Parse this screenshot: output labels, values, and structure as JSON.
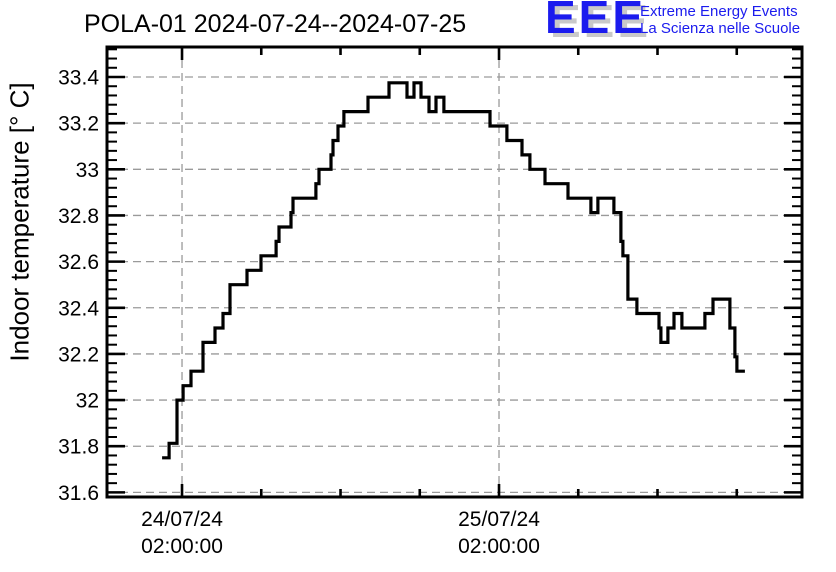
{
  "logo": {
    "acronym": "EEE",
    "line1": "Extreme Energy Events",
    "line2": "La Scienza nelle Scuole",
    "color": "#1b1bee",
    "shadow_color": "#c9c9c9"
  },
  "chart_data": {
    "type": "line",
    "subtype": "step-post",
    "title": "POLA-01 2024-07-24--2024-07-25",
    "ylabel": "Indoor temperature [° C]",
    "xlabel": "",
    "series_name": "Indoor temperature",
    "line_color": "#000000",
    "background_color": "#ffffff",
    "grid": {
      "show": true,
      "color": "#9a9a9a",
      "style": "dashed"
    },
    "x_axis": {
      "unit": "hours since 2024-07-24 00:00:00",
      "range_hours": [
        -3.68,
        48.94
      ],
      "major_tick_hours": [
        2,
        8,
        14,
        20,
        26,
        32,
        38,
        44
      ],
      "labeled_ticks": [
        {
          "hour": 2,
          "line1": "24/07/24",
          "line2": "02:00:00"
        },
        {
          "hour": 26,
          "line1": "25/07/24",
          "line2": "02:00:00"
        }
      ]
    },
    "y_axis": {
      "range": [
        31.58,
        33.53
      ],
      "major_ticks": [
        31.6,
        31.8,
        32,
        32.2,
        32.4,
        32.6,
        32.8,
        33,
        33.2,
        33.4
      ],
      "tick_labels": [
        "31.6",
        "31.8",
        "32",
        "32.2",
        "32.4",
        "32.6",
        "32.8",
        "33",
        "33.2",
        "33.4"
      ],
      "minor_tick_step": 0.04
    },
    "points": {
      "t_hours": [
        0.49,
        1.02,
        1.62,
        2.08,
        2.68,
        3.59,
        4.5,
        5.1,
        5.63,
        6.92,
        7.98,
        9.12,
        9.34,
        10.25,
        10.4,
        12.14,
        12.37,
        13.28,
        13.43,
        13.81,
        14.26,
        16.08,
        17.67,
        19.03,
        19.56,
        20.09,
        20.7,
        21.23,
        21.83,
        25.32,
        26.6,
        27.74,
        28.34,
        29.48,
        31.22,
        32.96,
        33.49,
        34.7,
        35.23,
        35.38,
        35.76,
        36.44,
        38.11,
        38.26,
        38.79,
        39.25,
        39.85,
        41.59,
        42.2,
        43.48,
        43.86,
        44.01,
        44.62
      ],
      "temp_c": [
        31.75,
        31.8125,
        32,
        32.0625,
        32.125,
        32.25,
        32.3125,
        32.375,
        32.5,
        32.5625,
        32.625,
        32.6875,
        32.75,
        32.8125,
        32.875,
        32.9375,
        33,
        33.0625,
        33.125,
        33.1875,
        33.25,
        33.3125,
        33.375,
        33.3125,
        33.375,
        33.3125,
        33.25,
        33.3125,
        33.25,
        33.1875,
        33.125,
        33.0625,
        33,
        32.9375,
        32.875,
        32.8125,
        32.875,
        32.8125,
        32.6875,
        32.625,
        32.4375,
        32.375,
        32.3125,
        32.25,
        32.3125,
        32.375,
        32.3125,
        32.375,
        32.4375,
        32.3125,
        32.1875,
        32.125,
        32.125
      ]
    }
  }
}
